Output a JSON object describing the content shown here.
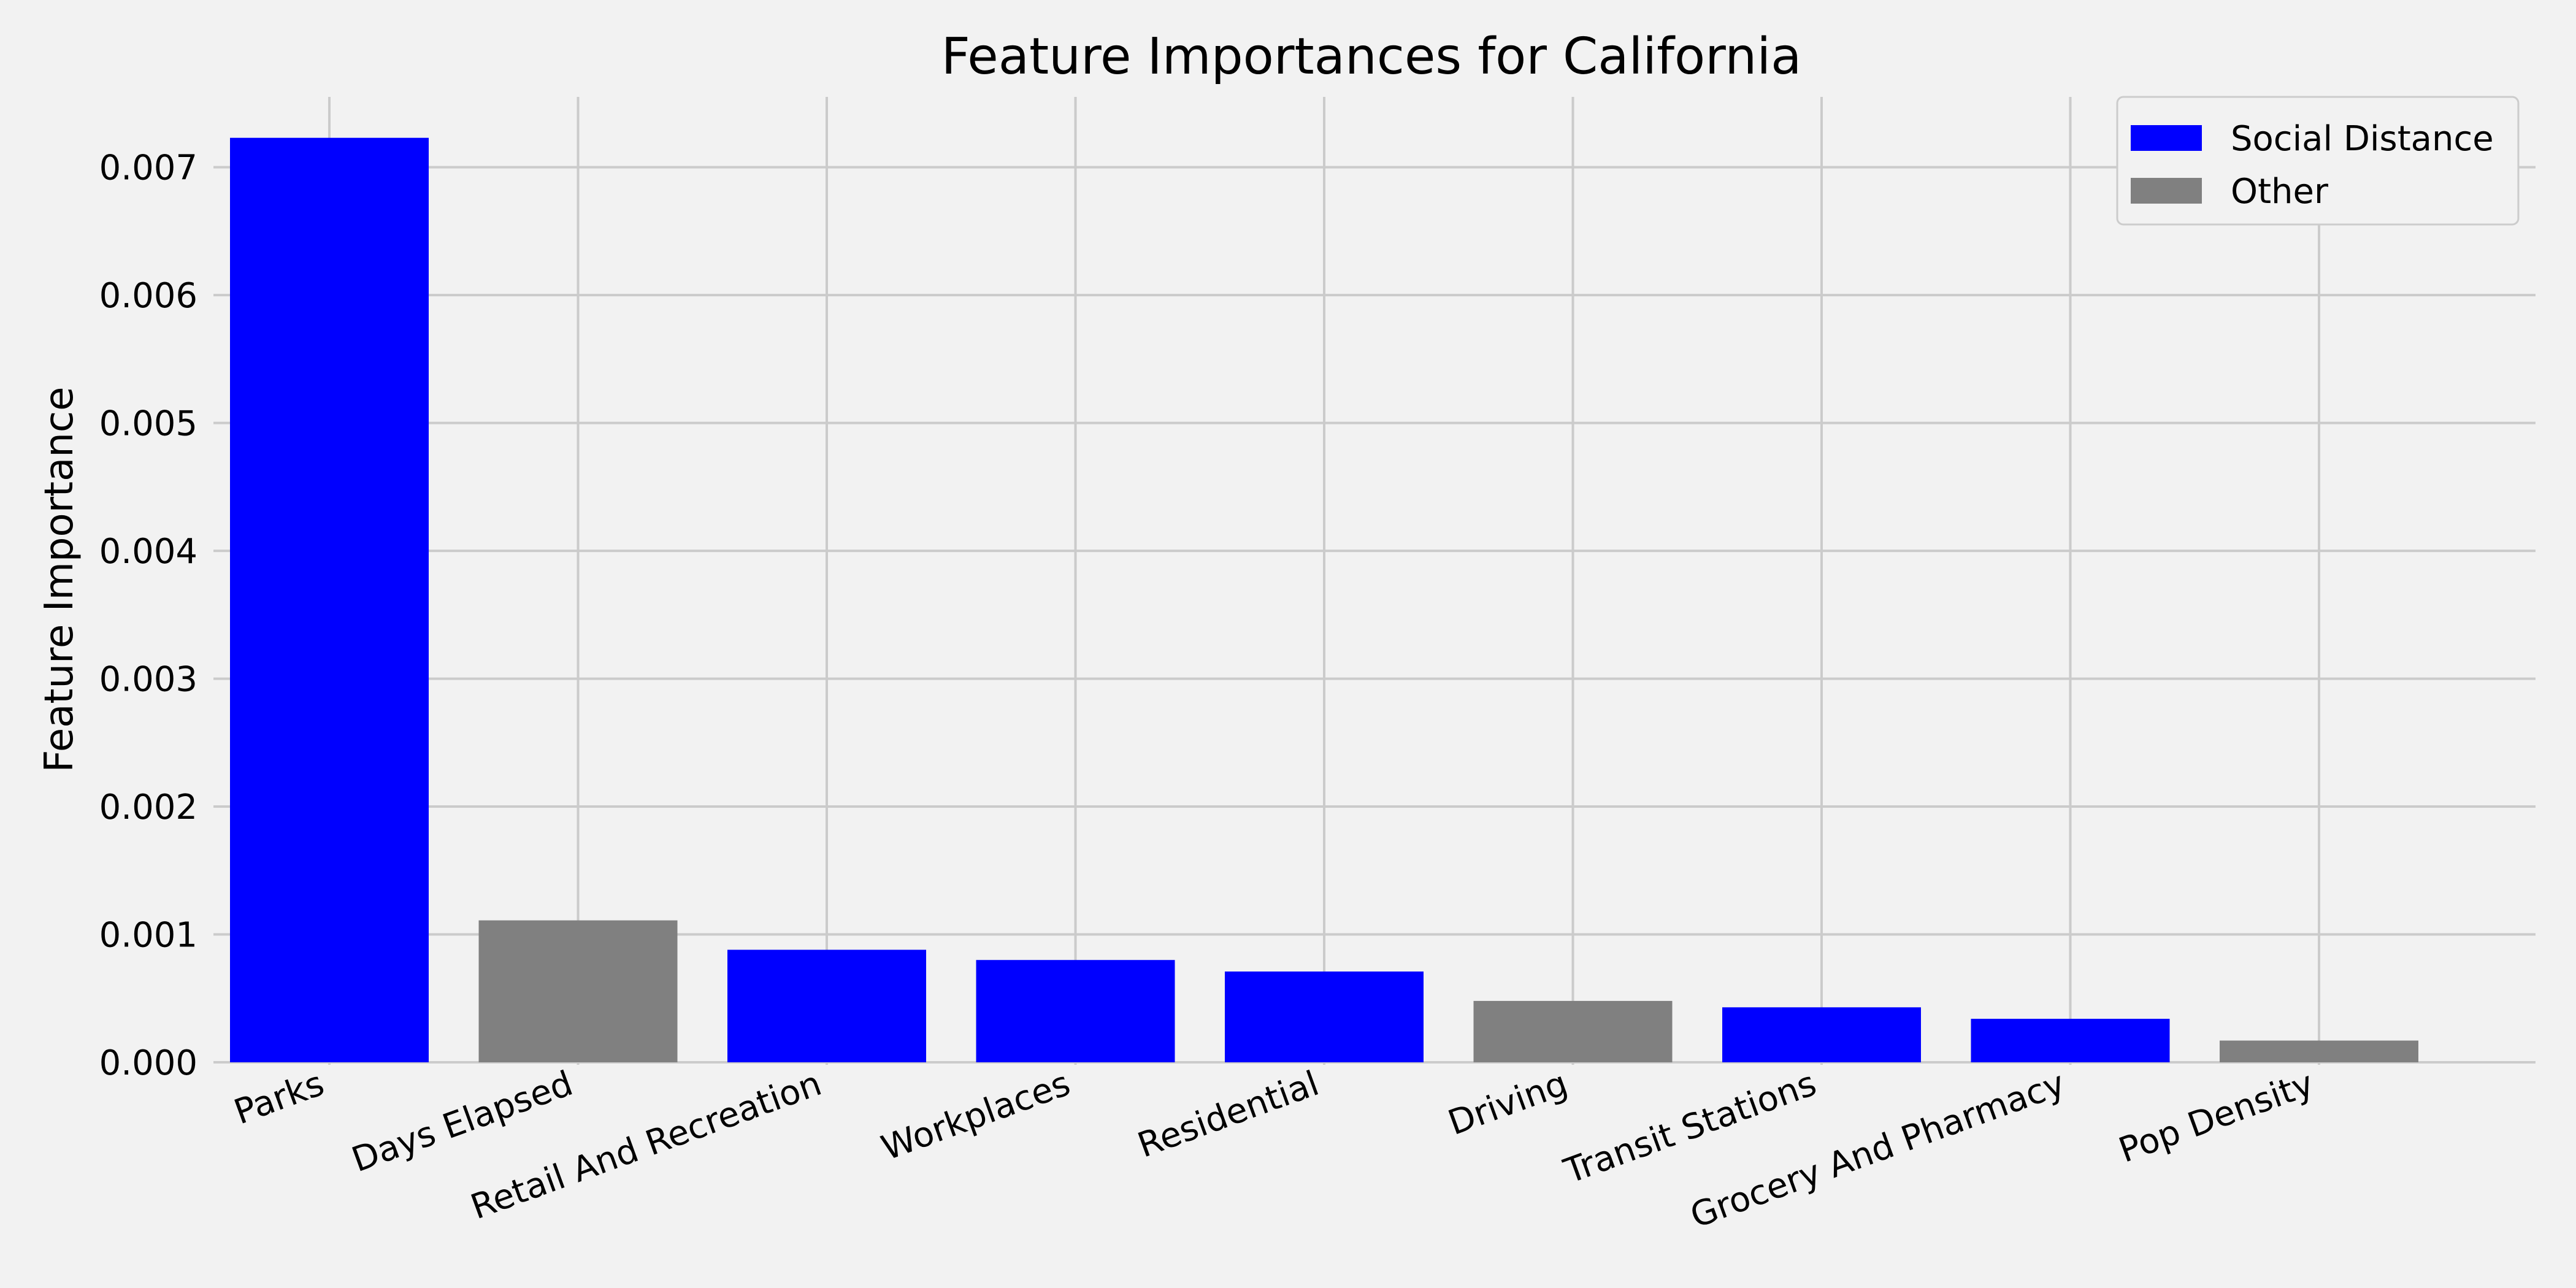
{
  "chart_data": {
    "type": "bar",
    "title": "Feature Importances for California",
    "xlabel": "",
    "ylabel": "Feature Importance",
    "categories": [
      "Parks",
      "Days Elapsed",
      "Retail And Recreation",
      "Workplaces",
      "Residential",
      "Driving",
      "Transit Stations",
      "Grocery And Pharmacy",
      "Pop Density"
    ],
    "values": [
      0.00723,
      0.00111,
      0.00088,
      0.0008,
      0.00071,
      0.00048,
      0.00043,
      0.00034,
      0.00017
    ],
    "groups": [
      "Social Distance",
      "Other",
      "Social Distance",
      "Social Distance",
      "Social Distance",
      "Other",
      "Social Distance",
      "Social Distance",
      "Other"
    ],
    "ylim": [
      0,
      0.00755
    ],
    "yticks": [
      "0.000",
      "0.001",
      "0.002",
      "0.003",
      "0.004",
      "0.005",
      "0.006",
      "0.007"
    ],
    "ytick_values": [
      0,
      0.001,
      0.002,
      0.003,
      0.004,
      0.005,
      0.006,
      0.007
    ],
    "grid": true,
    "legend_position": "top-right",
    "legend": [
      {
        "label": "Social Distance",
        "color": "#0000ff"
      },
      {
        "label": "Other",
        "color": "#808080"
      }
    ],
    "colors": {
      "Social Distance": "#0000ff",
      "Other": "#808080"
    }
  }
}
